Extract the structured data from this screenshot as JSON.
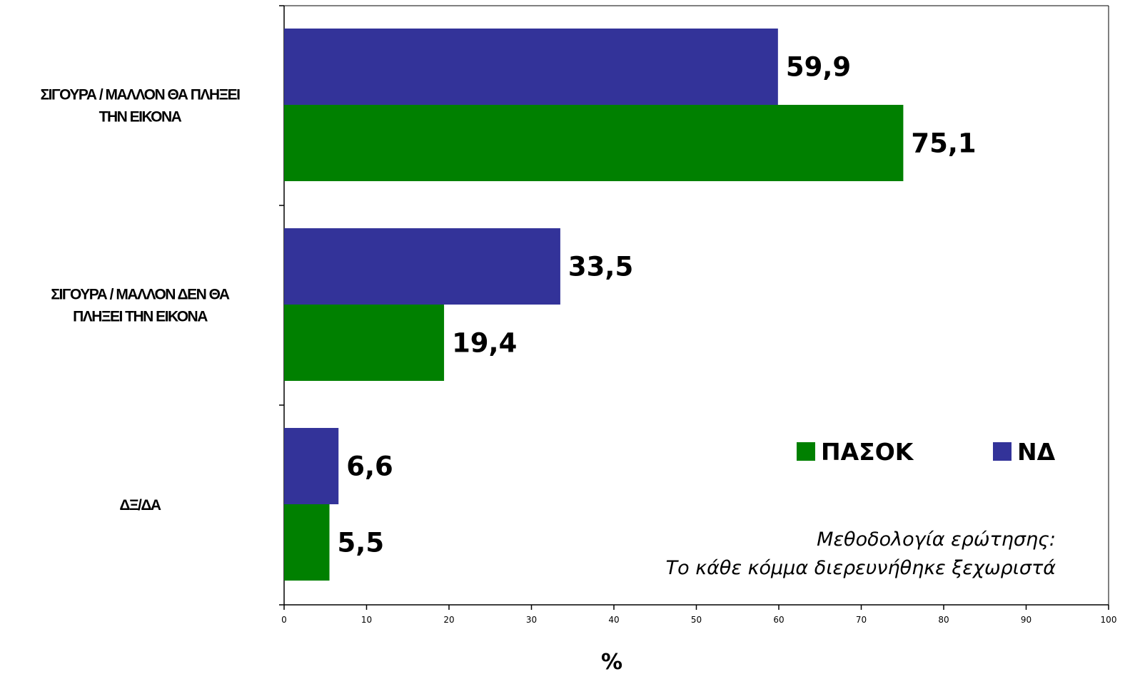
{
  "chart_data": {
    "type": "bar",
    "orientation": "horizontal",
    "categories": [
      [
        "ΣΙΓΟΥΡΑ / ΜΑΛΛΟΝ ΘΑ ΠΛΗΞΕΙ",
        "ΤΗΝ ΕΙΚΟΝΑ"
      ],
      [
        "ΣΙΓΟΥΡΑ / ΜΑΛΛΟΝ ΔΕΝ ΘΑ",
        "ΠΛΗΞΕΙ ΤΗΝ ΕΙΚΟΝΑ"
      ],
      [
        "ΔΞ/ΔΑ"
      ]
    ],
    "series": [
      {
        "name": "ΝΔ",
        "color": "#333399",
        "values": [
          59.9,
          33.5,
          6.6
        ],
        "labels": [
          "59,9",
          "33,5",
          "6,6"
        ]
      },
      {
        "name": "ΠΑΣΟΚ",
        "color": "#008000",
        "values": [
          75.1,
          19.4,
          5.5
        ],
        "labels": [
          "75,1",
          "19,4",
          "5,5"
        ]
      }
    ],
    "xlim": [
      0,
      100
    ],
    "xticks": [
      0,
      10,
      20,
      30,
      40,
      50,
      60,
      70,
      80,
      90,
      100
    ],
    "xlabel": "%",
    "legend": [
      {
        "name": "ΠΑΣΟΚ",
        "color": "#008000"
      },
      {
        "name": "ΝΔ",
        "color": "#333399"
      }
    ],
    "legend_position": "lower-right",
    "grid": false
  },
  "note": {
    "line1": "Μεθοδολογία ερώτησης:",
    "line2": "Το κάθε κόμμα διερευνήθηκε ξεχωριστά"
  }
}
